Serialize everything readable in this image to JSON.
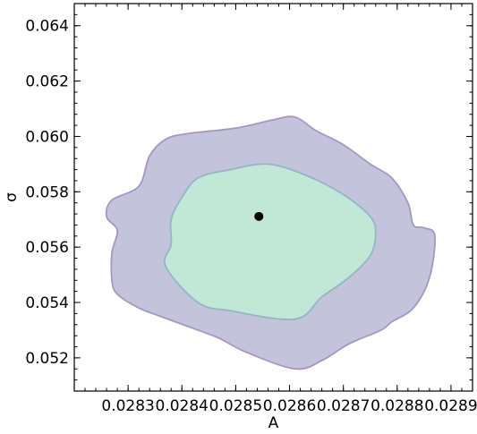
{
  "chart_data": {
    "type": "contour",
    "title": "",
    "xlabel": "A",
    "ylabel": "σ",
    "xlim": [
      0.0282,
      0.02894
    ],
    "ylim": [
      0.0508,
      0.0648
    ],
    "grid": false,
    "x_ticks": [
      {
        "value": 0.0283,
        "label": "0.0283"
      },
      {
        "value": 0.0284,
        "label": "0.0284"
      },
      {
        "value": 0.0285,
        "label": "0.0285"
      },
      {
        "value": 0.0286,
        "label": "0.0286"
      },
      {
        "value": 0.0287,
        "label": "0.0287"
      },
      {
        "value": 0.0288,
        "label": "0.0288"
      },
      {
        "value": 0.0289,
        "label": "0.0289"
      }
    ],
    "y_ticks": [
      {
        "value": 0.052,
        "label": "0.052"
      },
      {
        "value": 0.054,
        "label": "0.054"
      },
      {
        "value": 0.056,
        "label": "0.056"
      },
      {
        "value": 0.058,
        "label": "0.058"
      },
      {
        "value": 0.06,
        "label": "0.060"
      },
      {
        "value": 0.062,
        "label": "0.062"
      },
      {
        "value": 0.064,
        "label": "0.064"
      }
    ],
    "regions": [
      {
        "level": "outer",
        "fill": "#c3c3db",
        "stroke": "#a596c4",
        "points": [
          [
            0.02852,
            0.0522
          ],
          [
            0.02861,
            0.0516
          ],
          [
            0.02866,
            0.0519
          ],
          [
            0.02871,
            0.0525
          ],
          [
            0.02877,
            0.053
          ],
          [
            0.02879,
            0.0533
          ],
          [
            0.02883,
            0.0538
          ],
          [
            0.02886,
            0.0549
          ],
          [
            0.02887,
            0.0564
          ],
          [
            0.02885,
            0.0567
          ],
          [
            0.02883,
            0.0568
          ],
          [
            0.02882,
            0.0576
          ],
          [
            0.02879,
            0.0585
          ],
          [
            0.02875,
            0.059
          ],
          [
            0.0287,
            0.0597
          ],
          [
            0.02865,
            0.0602
          ],
          [
            0.02861,
            0.0607
          ],
          [
            0.02857,
            0.0606
          ],
          [
            0.0285,
            0.0603
          ],
          [
            0.02841,
            0.0601
          ],
          [
            0.02837,
            0.0599
          ],
          [
            0.02834,
            0.0593
          ],
          [
            0.02832,
            0.0582
          ],
          [
            0.02827,
            0.0577
          ],
          [
            0.02826,
            0.0571
          ],
          [
            0.02828,
            0.0566
          ],
          [
            0.02827,
            0.0558
          ],
          [
            0.02827,
            0.0548
          ],
          [
            0.02828,
            0.0543
          ],
          [
            0.02832,
            0.0538
          ],
          [
            0.02836,
            0.0535
          ],
          [
            0.02843,
            0.053
          ],
          [
            0.02847,
            0.0527
          ],
          [
            0.02852,
            0.0522
          ]
        ]
      },
      {
        "level": "inner",
        "fill": "#c1e8d7",
        "stroke": "#95b5c5",
        "points": [
          [
            0.02849,
            0.0537
          ],
          [
            0.02861,
            0.0534
          ],
          [
            0.02866,
            0.0542
          ],
          [
            0.02871,
            0.0549
          ],
          [
            0.02875,
            0.0557
          ],
          [
            0.02876,
            0.0565
          ],
          [
            0.02875,
            0.0571
          ],
          [
            0.0287,
            0.0579
          ],
          [
            0.02863,
            0.0586
          ],
          [
            0.02856,
            0.059
          ],
          [
            0.02849,
            0.0588
          ],
          [
            0.02843,
            0.0585
          ],
          [
            0.0284,
            0.0578
          ],
          [
            0.02838,
            0.057
          ],
          [
            0.02838,
            0.0561
          ],
          [
            0.02837,
            0.0553
          ],
          [
            0.02843,
            0.054
          ],
          [
            0.02849,
            0.0537
          ]
        ]
      }
    ],
    "points": [
      {
        "x": 0.028543,
        "y": 0.05711,
        "color": "#000000"
      }
    ]
  }
}
